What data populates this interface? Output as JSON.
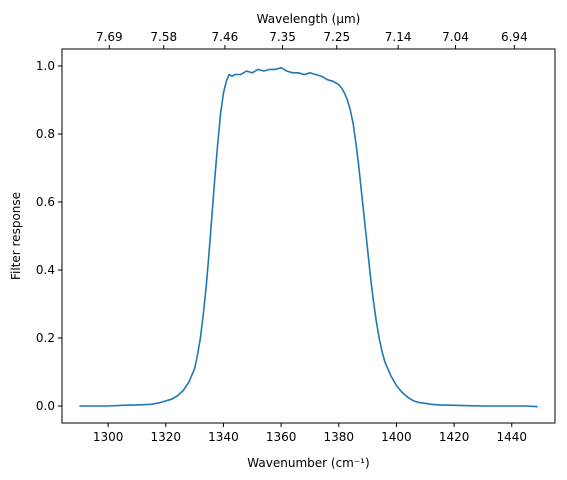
{
  "chart_data": {
    "type": "line",
    "xlabel": "Wavenumber (cm⁻¹)",
    "ylabel": "Filter response",
    "top_xlabel": "Wavelength (μm)",
    "xlim": [
      1284,
      1455
    ],
    "ylim": [
      -0.05,
      1.05
    ],
    "x_ticks": [
      1300,
      1320,
      1340,
      1360,
      1380,
      1400,
      1420,
      1440
    ],
    "y_ticks": [
      0.0,
      0.2,
      0.4,
      0.6,
      0.8,
      1.0
    ],
    "top_ticks": [
      {
        "wavenumber": 1300.4,
        "label": "7.69"
      },
      {
        "wavenumber": 1319.3,
        "label": "7.58"
      },
      {
        "wavenumber": 1340.5,
        "label": "7.46"
      },
      {
        "wavenumber": 1360.5,
        "label": "7.35"
      },
      {
        "wavenumber": 1379.3,
        "label": "7.25"
      },
      {
        "wavenumber": 1400.6,
        "label": "7.14"
      },
      {
        "wavenumber": 1420.5,
        "label": "7.04"
      },
      {
        "wavenumber": 1440.9,
        "label": "6.94"
      }
    ],
    "grid": false,
    "series": [
      {
        "name": "",
        "color": "#1f77b4",
        "x": [
          1290,
          1295,
          1300,
          1305,
          1310,
          1315,
          1318,
          1320,
          1322,
          1324,
          1326,
          1328,
          1330,
          1331,
          1332,
          1333,
          1334,
          1335,
          1336,
          1337,
          1338,
          1339,
          1340,
          1341,
          1342,
          1343,
          1344,
          1346,
          1348,
          1350,
          1352,
          1354,
          1356,
          1358,
          1360,
          1362,
          1364,
          1366,
          1368,
          1370,
          1372,
          1374,
          1376,
          1378,
          1380,
          1381,
          1382,
          1383,
          1384,
          1385,
          1386,
          1387,
          1388,
          1389,
          1390,
          1391,
          1392,
          1393,
          1394,
          1395,
          1396,
          1397,
          1398,
          1400,
          1402,
          1404,
          1406,
          1408,
          1410,
          1412,
          1415,
          1420,
          1425,
          1430,
          1435,
          1440,
          1445,
          1449
        ],
        "y": [
          0.0,
          0.0,
          0.0,
          0.002,
          0.003,
          0.005,
          0.01,
          0.015,
          0.02,
          0.03,
          0.045,
          0.07,
          0.11,
          0.15,
          0.2,
          0.27,
          0.35,
          0.45,
          0.56,
          0.67,
          0.77,
          0.86,
          0.92,
          0.955,
          0.975,
          0.97,
          0.975,
          0.975,
          0.985,
          0.98,
          0.99,
          0.985,
          0.99,
          0.99,
          0.995,
          0.985,
          0.98,
          0.98,
          0.975,
          0.98,
          0.975,
          0.97,
          0.96,
          0.955,
          0.945,
          0.935,
          0.92,
          0.9,
          0.87,
          0.83,
          0.77,
          0.7,
          0.62,
          0.54,
          0.46,
          0.38,
          0.31,
          0.25,
          0.2,
          0.16,
          0.13,
          0.11,
          0.09,
          0.06,
          0.04,
          0.025,
          0.015,
          0.01,
          0.008,
          0.005,
          0.003,
          0.002,
          0.001,
          0.0,
          0.0,
          0.0,
          0.0,
          -0.002
        ]
      }
    ]
  }
}
